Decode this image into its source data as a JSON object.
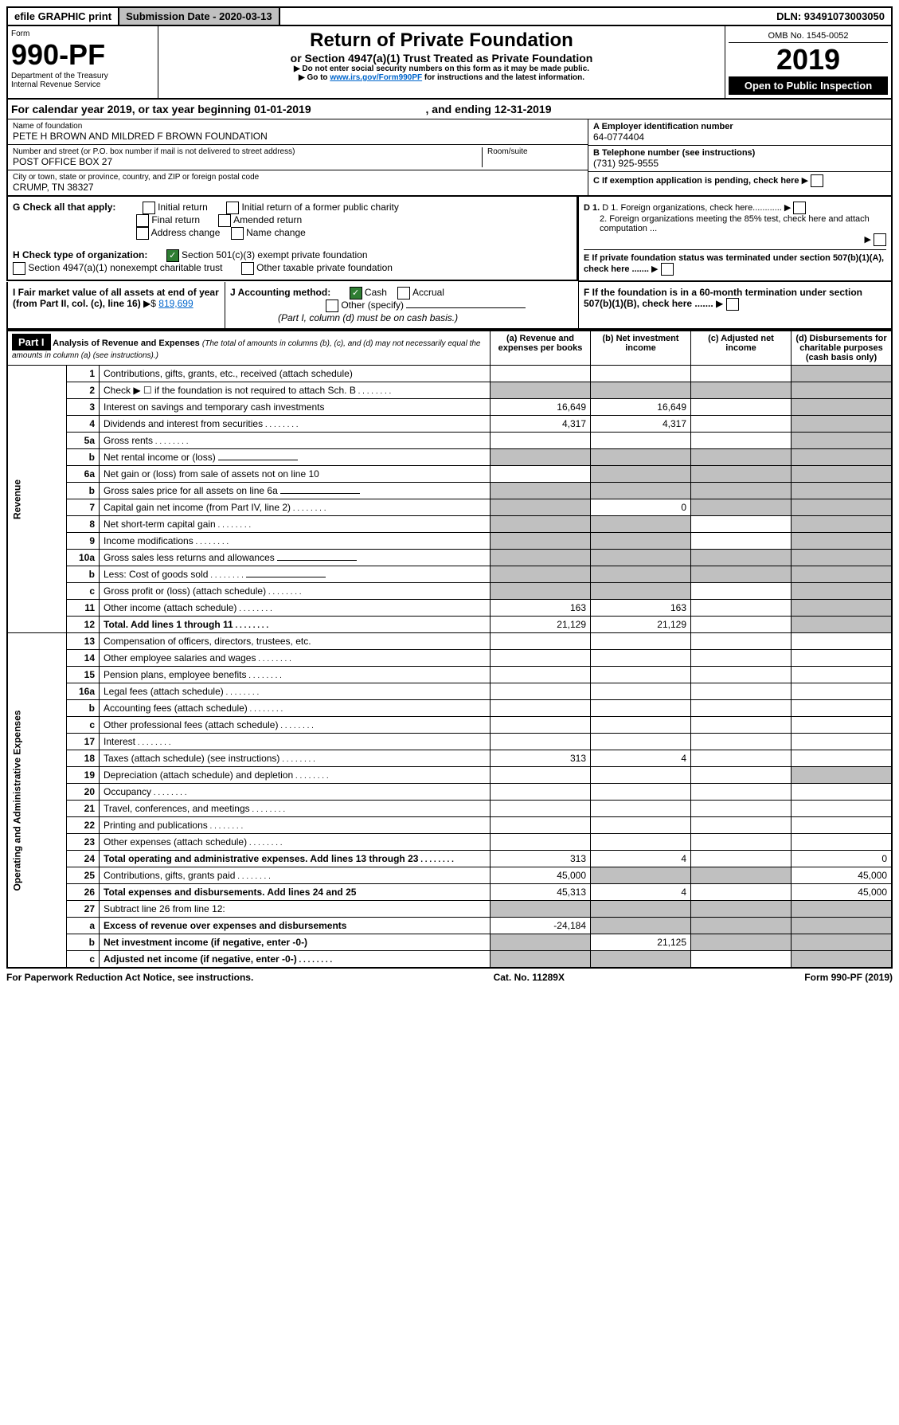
{
  "top": {
    "efile": "efile GRAPHIC print",
    "sub_date_label": "Submission Date - 2020-03-13",
    "dln": "DLN: 93491073003050"
  },
  "header": {
    "form_label": "Form",
    "form_num": "990-PF",
    "dept": "Department of the Treasury",
    "irs": "Internal Revenue Service",
    "title": "Return of Private Foundation",
    "subtitle": "or Section 4947(a)(1) Trust Treated as Private Foundation",
    "note1": "Do not enter social security numbers on this form as it may be made public.",
    "note2_pre": "Go to ",
    "note2_link": "www.irs.gov/Form990PF",
    "note2_post": " for instructions and the latest information.",
    "omb": "OMB No. 1545-0052",
    "year": "2019",
    "open": "Open to Public Inspection"
  },
  "cal_year": {
    "pre": "For calendar year 2019, or tax year beginning ",
    "begin": "01-01-2019",
    "mid": " , and ending ",
    "end": "12-31-2019"
  },
  "entity": {
    "name_label": "Name of foundation",
    "name": "PETE H BROWN AND MILDRED F BROWN FOUNDATION",
    "addr_label": "Number and street (or P.O. box number if mail is not delivered to street address)",
    "room_label": "Room/suite",
    "addr": "POST OFFICE BOX 27",
    "city_label": "City or town, state or province, country, and ZIP or foreign postal code",
    "city": "CRUMP, TN  38327",
    "a_label": "A Employer identification number",
    "a_val": "64-0774404",
    "b_label": "B Telephone number (see instructions)",
    "b_val": "(731) 925-9555",
    "c_label": "C If exemption application is pending, check here",
    "d1": "D 1. Foreign organizations, check here............",
    "d2": "2. Foreign organizations meeting the 85% test, check here and attach computation ...",
    "e": "E  If private foundation status was terminated under section 507(b)(1)(A), check here .......",
    "f": "F  If the foundation is in a 60-month termination under section 507(b)(1)(B), check here ......."
  },
  "g": {
    "label": "G Check all that apply:",
    "opts": [
      "Initial return",
      "Initial return of a former public charity",
      "Final return",
      "Amended return",
      "Address change",
      "Name change"
    ]
  },
  "h": {
    "label": "H Check type of organization:",
    "opt1": "Section 501(c)(3) exempt private foundation",
    "opt2": "Section 4947(a)(1) nonexempt charitable trust",
    "opt3": "Other taxable private foundation"
  },
  "i": {
    "label": "I Fair market value of all assets at end of year (from Part II, col. (c), line 16)",
    "val": "819,699"
  },
  "j": {
    "label": "J Accounting method:",
    "cash": "Cash",
    "accrual": "Accrual",
    "other": "Other (specify)",
    "note": "(Part I, column (d) must be on cash basis.)"
  },
  "part1": {
    "label": "Part I",
    "title": "Analysis of Revenue and Expenses",
    "sub": "(The total of amounts in columns (b), (c), and (d) may not necessarily equal the amounts in column (a) (see instructions).)",
    "cols": {
      "a": "(a)   Revenue and expenses per books",
      "b": "(b)   Net investment income",
      "c": "(c)   Adjusted net income",
      "d": "(d)   Disbursements for charitable purposes (cash basis only)"
    }
  },
  "sections": {
    "rev": "Revenue",
    "oae": "Operating and Administrative Expenses"
  },
  "rows": [
    {
      "n": "1",
      "d": "Contributions, gifts, grants, etc., received (attach schedule)",
      "g": [
        0,
        0,
        0,
        1
      ]
    },
    {
      "n": "2",
      "d": "Check ▶ ☐ if the foundation is not required to attach Sch. B",
      "dots": 1,
      "g": [
        1,
        1,
        1,
        1
      ]
    },
    {
      "n": "3",
      "d": "Interest on savings and temporary cash investments",
      "a": "16,649",
      "b": "16,649",
      "g": [
        0,
        0,
        0,
        1
      ]
    },
    {
      "n": "4",
      "d": "Dividends and interest from securities",
      "dots": 1,
      "a": "4,317",
      "b": "4,317",
      "g": [
        0,
        0,
        0,
        1
      ]
    },
    {
      "n": "5a",
      "d": "Gross rents",
      "dots": 1,
      "g": [
        0,
        0,
        0,
        1
      ]
    },
    {
      "n": "b",
      "d": "Net rental income or (loss)",
      "line": 1,
      "g": [
        1,
        1,
        1,
        1
      ]
    },
    {
      "n": "6a",
      "d": "Net gain or (loss) from sale of assets not on line 10",
      "g": [
        0,
        1,
        1,
        1
      ]
    },
    {
      "n": "b",
      "d": "Gross sales price for all assets on line 6a",
      "line": 1,
      "g": [
        1,
        1,
        1,
        1
      ]
    },
    {
      "n": "7",
      "d": "Capital gain net income (from Part IV, line 2)",
      "dots": 1,
      "b": "0",
      "g": [
        1,
        0,
        1,
        1
      ]
    },
    {
      "n": "8",
      "d": "Net short-term capital gain",
      "dots": 1,
      "g": [
        1,
        1,
        0,
        1
      ]
    },
    {
      "n": "9",
      "d": "Income modifications",
      "dots": 1,
      "g": [
        1,
        1,
        0,
        1
      ]
    },
    {
      "n": "10a",
      "d": "Gross sales less returns and allowances",
      "line": 1,
      "g": [
        1,
        1,
        1,
        1
      ]
    },
    {
      "n": "b",
      "d": "Less: Cost of goods sold",
      "dots": 1,
      "line": 1,
      "g": [
        1,
        1,
        1,
        1
      ]
    },
    {
      "n": "c",
      "d": "Gross profit or (loss) (attach schedule)",
      "dots": 1,
      "g": [
        1,
        1,
        0,
        1
      ]
    },
    {
      "n": "11",
      "d": "Other income (attach schedule)",
      "dots": 1,
      "a": "163",
      "b": "163",
      "g": [
        0,
        0,
        0,
        1
      ]
    },
    {
      "n": "12",
      "d": "Total. Add lines 1 through 11",
      "dots": 1,
      "bold": 1,
      "a": "21,129",
      "b": "21,129",
      "g": [
        0,
        0,
        0,
        1
      ]
    },
    {
      "n": "13",
      "d": "Compensation of officers, directors, trustees, etc.",
      "sec": "oae"
    },
    {
      "n": "14",
      "d": "Other employee salaries and wages",
      "dots": 1
    },
    {
      "n": "15",
      "d": "Pension plans, employee benefits",
      "dots": 1
    },
    {
      "n": "16a",
      "d": "Legal fees (attach schedule)",
      "dots": 1
    },
    {
      "n": "b",
      "d": "Accounting fees (attach schedule)",
      "dots": 1
    },
    {
      "n": "c",
      "d": "Other professional fees (attach schedule)",
      "dots": 1
    },
    {
      "n": "17",
      "d": "Interest",
      "dots": 1
    },
    {
      "n": "18",
      "d": "Taxes (attach schedule) (see instructions)",
      "dots": 1,
      "a": "313",
      "b": "4"
    },
    {
      "n": "19",
      "d": "Depreciation (attach schedule) and depletion",
      "dots": 1,
      "g": [
        0,
        0,
        0,
        1
      ]
    },
    {
      "n": "20",
      "d": "Occupancy",
      "dots": 1
    },
    {
      "n": "21",
      "d": "Travel, conferences, and meetings",
      "dots": 1
    },
    {
      "n": "22",
      "d": "Printing and publications",
      "dots": 1
    },
    {
      "n": "23",
      "d": "Other expenses (attach schedule)",
      "dots": 1
    },
    {
      "n": "24",
      "d": "Total operating and administrative expenses. Add lines 13 through 23",
      "dots": 1,
      "bold": 1,
      "a": "313",
      "b": "4",
      "d4": "0"
    },
    {
      "n": "25",
      "d": "Contributions, gifts, grants paid",
      "dots": 1,
      "a": "45,000",
      "g": [
        0,
        1,
        1,
        0
      ],
      "d4": "45,000"
    },
    {
      "n": "26",
      "d": "Total expenses and disbursements. Add lines 24 and 25",
      "bold": 1,
      "a": "45,313",
      "b": "4",
      "d4": "45,000"
    },
    {
      "n": "27",
      "d": "Subtract line 26 from line 12:",
      "g": [
        1,
        1,
        1,
        1
      ]
    },
    {
      "n": "a",
      "d": "Excess of revenue over expenses and disbursements",
      "bold": 1,
      "a": "-24,184",
      "g": [
        0,
        1,
        1,
        1
      ]
    },
    {
      "n": "b",
      "d": "Net investment income (if negative, enter -0-)",
      "bold": 1,
      "b": "21,125",
      "g": [
        1,
        0,
        1,
        1
      ]
    },
    {
      "n": "c",
      "d": "Adjusted net income (if negative, enter -0-)",
      "bold": 1,
      "dots": 1,
      "g": [
        1,
        1,
        0,
        1
      ]
    }
  ],
  "footer": {
    "left": "For Paperwork Reduction Act Notice, see instructions.",
    "mid": "Cat. No. 11289X",
    "right": "Form 990-PF (2019)"
  }
}
